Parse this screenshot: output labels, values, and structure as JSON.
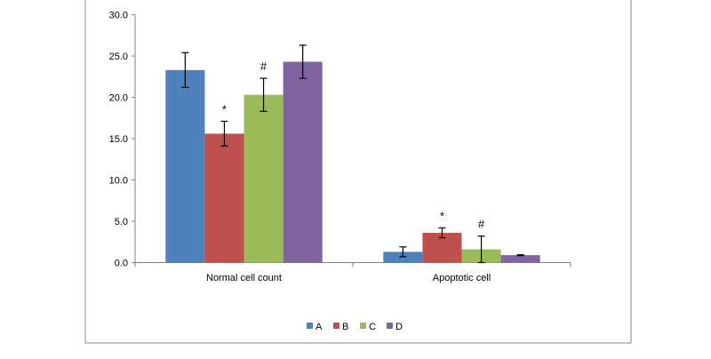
{
  "chart_data": {
    "type": "bar",
    "title": "",
    "xlabel": "",
    "ylabel": "",
    "ylim": [
      0,
      30
    ],
    "yticks": [
      "0.0",
      "5.0",
      "10.0",
      "15.0",
      "20.0",
      "25.0",
      "30.0"
    ],
    "grid": false,
    "legend_position": "bottom",
    "categories": [
      "Normal cell count",
      "Apoptotic cell"
    ],
    "series": [
      {
        "name": "A",
        "color": "#4f81bd",
        "values": [
          23.3,
          1.3
        ],
        "errors": [
          2.1,
          0.6
        ],
        "marks": [
          "",
          ""
        ]
      },
      {
        "name": "B",
        "color": "#c0504d",
        "values": [
          15.6,
          3.6
        ],
        "errors": [
          1.5,
          0.6
        ],
        "marks": [
          "*",
          "*"
        ]
      },
      {
        "name": "C",
        "color": "#9bbb59",
        "values": [
          20.3,
          1.6
        ],
        "errors": [
          2.0,
          1.6
        ],
        "marks": [
          "#",
          "#"
        ]
      },
      {
        "name": "D",
        "color": "#8064a2",
        "values": [
          24.3,
          0.9
        ],
        "errors": [
          2.0,
          0.05
        ],
        "marks": [
          "",
          ""
        ]
      }
    ]
  }
}
